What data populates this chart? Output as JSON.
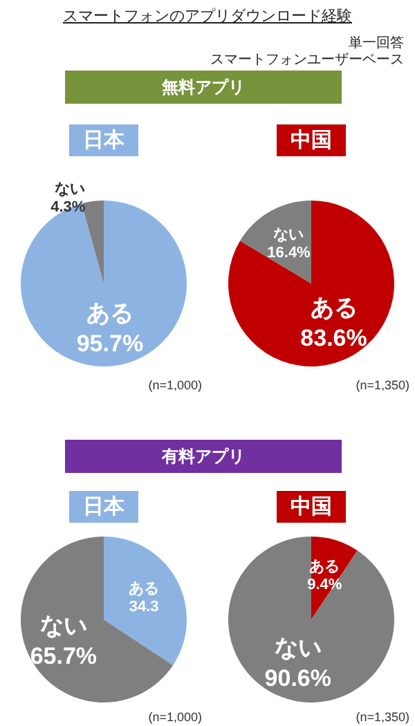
{
  "chart_data": [
    {
      "type": "other",
      "title": "スマートフォンのアプリダウンロード経験",
      "annotations": [
        "単一回答",
        "スマートフォンユーザーベース"
      ]
    },
    {
      "type": "other",
      "title": "無料アプリ"
    },
    {
      "type": "pie",
      "title": "日本",
      "categories": [
        "ある",
        "ない"
      ],
      "values": [
        95.7,
        4.3
      ],
      "colors": [
        "#8db3e2",
        "#7f7f7f"
      ],
      "value_labels": [
        "95.7%",
        "4.3%"
      ],
      "annotations": [
        "(n=1,000)"
      ]
    },
    {
      "type": "pie",
      "title": "中国",
      "categories": [
        "ある",
        "ない"
      ],
      "values": [
        83.6,
        16.4
      ],
      "colors": [
        "#c00000",
        "#7f7f7f"
      ],
      "value_labels": [
        "83.6%",
        "16.4%"
      ],
      "annotations": [
        "(n=1,350)"
      ]
    },
    {
      "type": "other",
      "title": "有料アプリ"
    },
    {
      "type": "pie",
      "title": "日本",
      "categories": [
        "ある",
        "ない"
      ],
      "values": [
        34.3,
        65.7
      ],
      "colors": [
        "#8db3e2",
        "#7f7f7f"
      ],
      "value_labels": [
        "34.3",
        "65.7%"
      ],
      "annotations": [
        "(n=1,000)"
      ]
    },
    {
      "type": "pie",
      "title": "中国",
      "categories": [
        "ある",
        "ない"
      ],
      "values": [
        9.4,
        90.6
      ],
      "colors": [
        "#c00000",
        "#7f7f7f"
      ],
      "value_labels": [
        "9.4%",
        "90.6%"
      ],
      "annotations": [
        "(n=1,350)"
      ]
    }
  ]
}
